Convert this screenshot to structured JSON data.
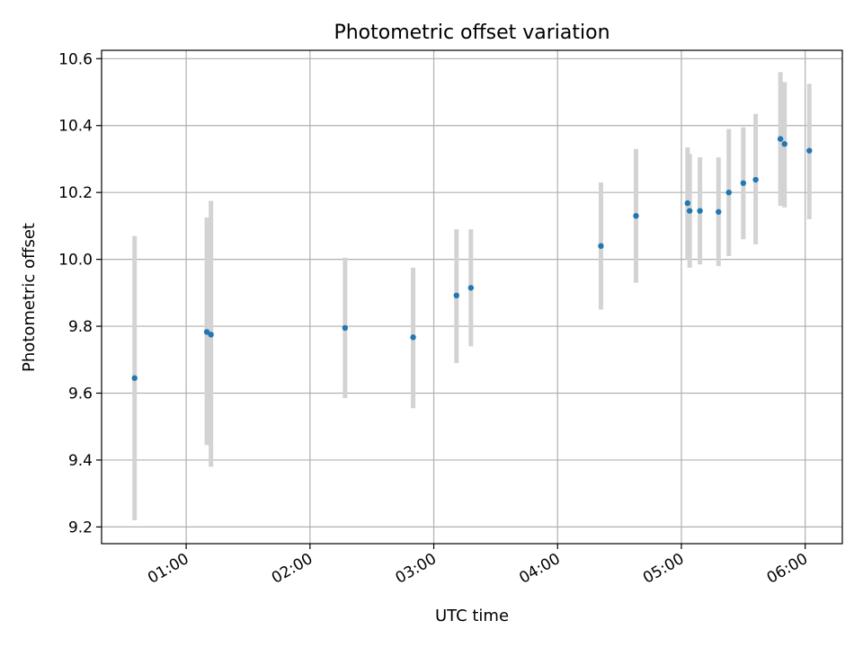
{
  "chart_data": {
    "type": "scatter",
    "title": "Photometric offset variation",
    "xlabel": "UTC time",
    "ylabel": "Photometric offset",
    "x_axis": {
      "kind": "time",
      "range": [
        "00:19",
        "06:18"
      ],
      "ticks": [
        "01:00",
        "02:00",
        "03:00",
        "04:00",
        "05:00",
        "06:00"
      ]
    },
    "y_axis": {
      "range": [
        9.15,
        10.625
      ],
      "ticks": [
        "9.2",
        "9.4",
        "9.6",
        "9.8",
        "10.0",
        "10.2",
        "10.4",
        "10.6"
      ]
    },
    "grid": true,
    "colors": {
      "point": "#1f77b4",
      "errorbar": "#d3d3d3"
    },
    "points": [
      {
        "time": "00:35",
        "y": 9.645,
        "low": 9.22,
        "high": 10.07
      },
      {
        "time": "01:10",
        "y": 9.783,
        "low": 9.445,
        "high": 10.125
      },
      {
        "time": "01:12",
        "y": 9.775,
        "low": 9.38,
        "high": 10.175
      },
      {
        "time": "02:17",
        "y": 9.795,
        "low": 9.585,
        "high": 10.005
      },
      {
        "time": "02:50",
        "y": 9.767,
        "low": 9.555,
        "high": 9.975
      },
      {
        "time": "03:11",
        "y": 9.892,
        "low": 9.69,
        "high": 10.09
      },
      {
        "time": "03:18",
        "y": 9.915,
        "low": 9.74,
        "high": 10.09
      },
      {
        "time": "04:21",
        "y": 10.04,
        "low": 9.85,
        "high": 10.23
      },
      {
        "time": "04:38",
        "y": 10.13,
        "low": 9.93,
        "high": 10.33
      },
      {
        "time": "05:03",
        "y": 10.168,
        "low": 10.0,
        "high": 10.335
      },
      {
        "time": "05:04",
        "y": 10.145,
        "low": 9.975,
        "high": 10.315
      },
      {
        "time": "05:09",
        "y": 10.145,
        "low": 9.985,
        "high": 10.305
      },
      {
        "time": "05:18",
        "y": 10.142,
        "low": 9.98,
        "high": 10.305
      },
      {
        "time": "05:23",
        "y": 10.2,
        "low": 10.01,
        "high": 10.39
      },
      {
        "time": "05:30",
        "y": 10.228,
        "low": 10.06,
        "high": 10.395
      },
      {
        "time": "05:36",
        "y": 10.238,
        "low": 10.045,
        "high": 10.435
      },
      {
        "time": "05:48",
        "y": 10.36,
        "low": 10.16,
        "high": 10.56
      },
      {
        "time": "05:50",
        "y": 10.345,
        "low": 10.155,
        "high": 10.53
      },
      {
        "time": "06:02",
        "y": 10.325,
        "low": 10.12,
        "high": 10.525
      }
    ]
  }
}
